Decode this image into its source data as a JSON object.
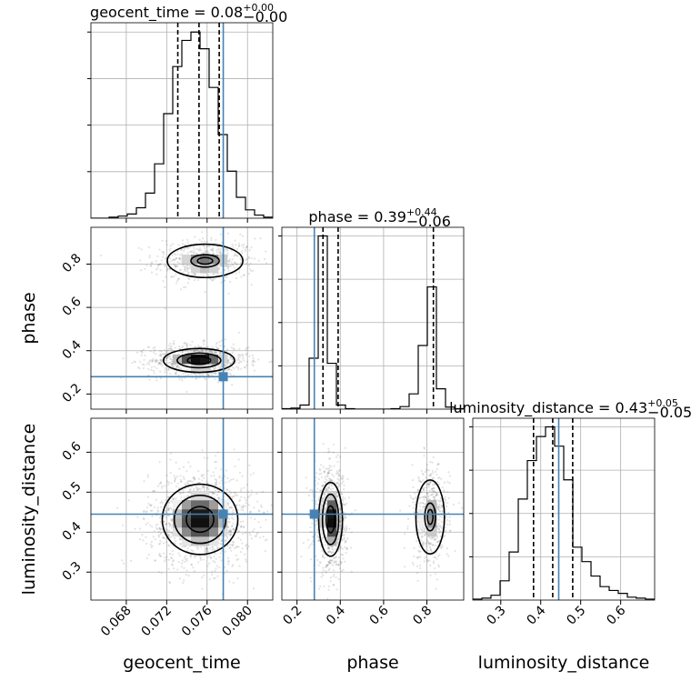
{
  "chart_data": {
    "type": "corner",
    "parameters": [
      "geocent_time",
      "phase",
      "luminosity_distance"
    ],
    "axis_labels": {
      "x": [
        "geocent_time",
        "phase",
        "luminosity_distance"
      ],
      "y": [
        "",
        "phase",
        "luminosity_distance"
      ]
    },
    "truths": {
      "geocent_time": 0.0776,
      "phase": 0.28,
      "luminosity_distance": 0.445
    },
    "truth_color": "#4682b4",
    "ranges": {
      "geocent_time": [
        0.0645,
        0.0825
      ],
      "phase": [
        0.13,
        0.97
      ],
      "luminosity_distance": [
        0.23,
        0.685
      ]
    },
    "ticks": {
      "geocent_time": [
        0.068,
        0.072,
        0.076,
        0.08
      ],
      "phase": [
        0.2,
        0.4,
        0.6,
        0.8
      ],
      "luminosity_distance": [
        0.3,
        0.4,
        0.5,
        0.6
      ]
    },
    "tick_labels": {
      "geocent_time": [
        "0.068",
        "0.072",
        "0.076",
        "0.080"
      ],
      "phase": [
        "0.2",
        "0.4",
        "0.6",
        "0.8"
      ],
      "luminosity_distance": [
        "0.3",
        "0.4",
        "0.5",
        "0.6"
      ]
    },
    "titles": {
      "geocent_time": {
        "name": "geocent_time",
        "median": "0.08",
        "plus": "+0.00",
        "minus": "−0.00"
      },
      "phase": {
        "name": "phase",
        "median": "0.39",
        "plus": "+0.44",
        "minus": "−0.06"
      },
      "luminosity_distance": {
        "name": "luminosity_distance",
        "median": "0.43",
        "plus": "+0.05",
        "minus": "−0.05"
      }
    },
    "quantiles": {
      "geocent_time": [
        0.0731,
        0.0752,
        0.0772
      ],
      "phase": [
        0.32,
        0.39,
        0.83
      ],
      "luminosity_distance": [
        0.382,
        0.43,
        0.48
      ]
    },
    "histograms": {
      "geocent_time": {
        "edges": [
          0.0645,
          0.0654,
          0.0663,
          0.0672,
          0.0681,
          0.069,
          0.0699,
          0.0708,
          0.0717,
          0.0726,
          0.0735,
          0.0744,
          0.0753,
          0.0762,
          0.0771,
          0.078,
          0.0789,
          0.0798,
          0.0807,
          0.0816,
          0.0825
        ],
        "counts": [
          0,
          0,
          1,
          2,
          4,
          10,
          24,
          52,
          100,
          145,
          170,
          178,
          162,
          125,
          80,
          45,
          20,
          8,
          3,
          1
        ]
      },
      "phase": {
        "edges": [
          0.13,
          0.172,
          0.214,
          0.256,
          0.298,
          0.34,
          0.382,
          0.424,
          0.466,
          0.508,
          0.55,
          0.592,
          0.634,
          0.676,
          0.718,
          0.76,
          0.802,
          0.844,
          0.886,
          0.928,
          0.97
        ],
        "counts": [
          1,
          2,
          8,
          100,
          340,
          90,
          8,
          1,
          0,
          0,
          0,
          0,
          1,
          5,
          30,
          125,
          240,
          40,
          4,
          1
        ]
      },
      "luminosity_distance": {
        "edges": [
          0.23,
          0.2528,
          0.2755,
          0.2983,
          0.321,
          0.3438,
          0.3665,
          0.3893,
          0.412,
          0.4348,
          0.4575,
          0.4803,
          0.503,
          0.5258,
          0.5485,
          0.5713,
          0.594,
          0.6168,
          0.639,
          0.662,
          0.685
        ],
        "counts": [
          1,
          2,
          5,
          20,
          50,
          105,
          145,
          170,
          180,
          160,
          125,
          55,
          40,
          25,
          14,
          10,
          7,
          3,
          2,
          1
        ]
      }
    },
    "density_modes": [
      {
        "x": "geocent_time",
        "y": "phase",
        "modes": [
          {
            "x": 0.0758,
            "y": 0.815,
            "sx": 0.0017,
            "sy": 0.035,
            "w": 0.55
          },
          {
            "x": 0.0752,
            "y": 0.355,
            "sx": 0.0016,
            "sy": 0.025,
            "w": 0.9
          }
        ]
      },
      {
        "x": "geocent_time",
        "y": "luminosity_distance",
        "modes": [
          {
            "x": 0.0753,
            "y": 0.432,
            "sx": 0.0017,
            "sy": 0.04,
            "w": 1.0
          }
        ]
      },
      {
        "x": "phase",
        "y": "luminosity_distance",
        "modes": [
          {
            "x": 0.355,
            "y": 0.432,
            "sx": 0.025,
            "sy": 0.042,
            "w": 1.0
          },
          {
            "x": 0.815,
            "y": 0.438,
            "sx": 0.03,
            "sy": 0.042,
            "w": 0.55
          }
        ]
      }
    ],
    "grid": true,
    "legend": "none"
  }
}
